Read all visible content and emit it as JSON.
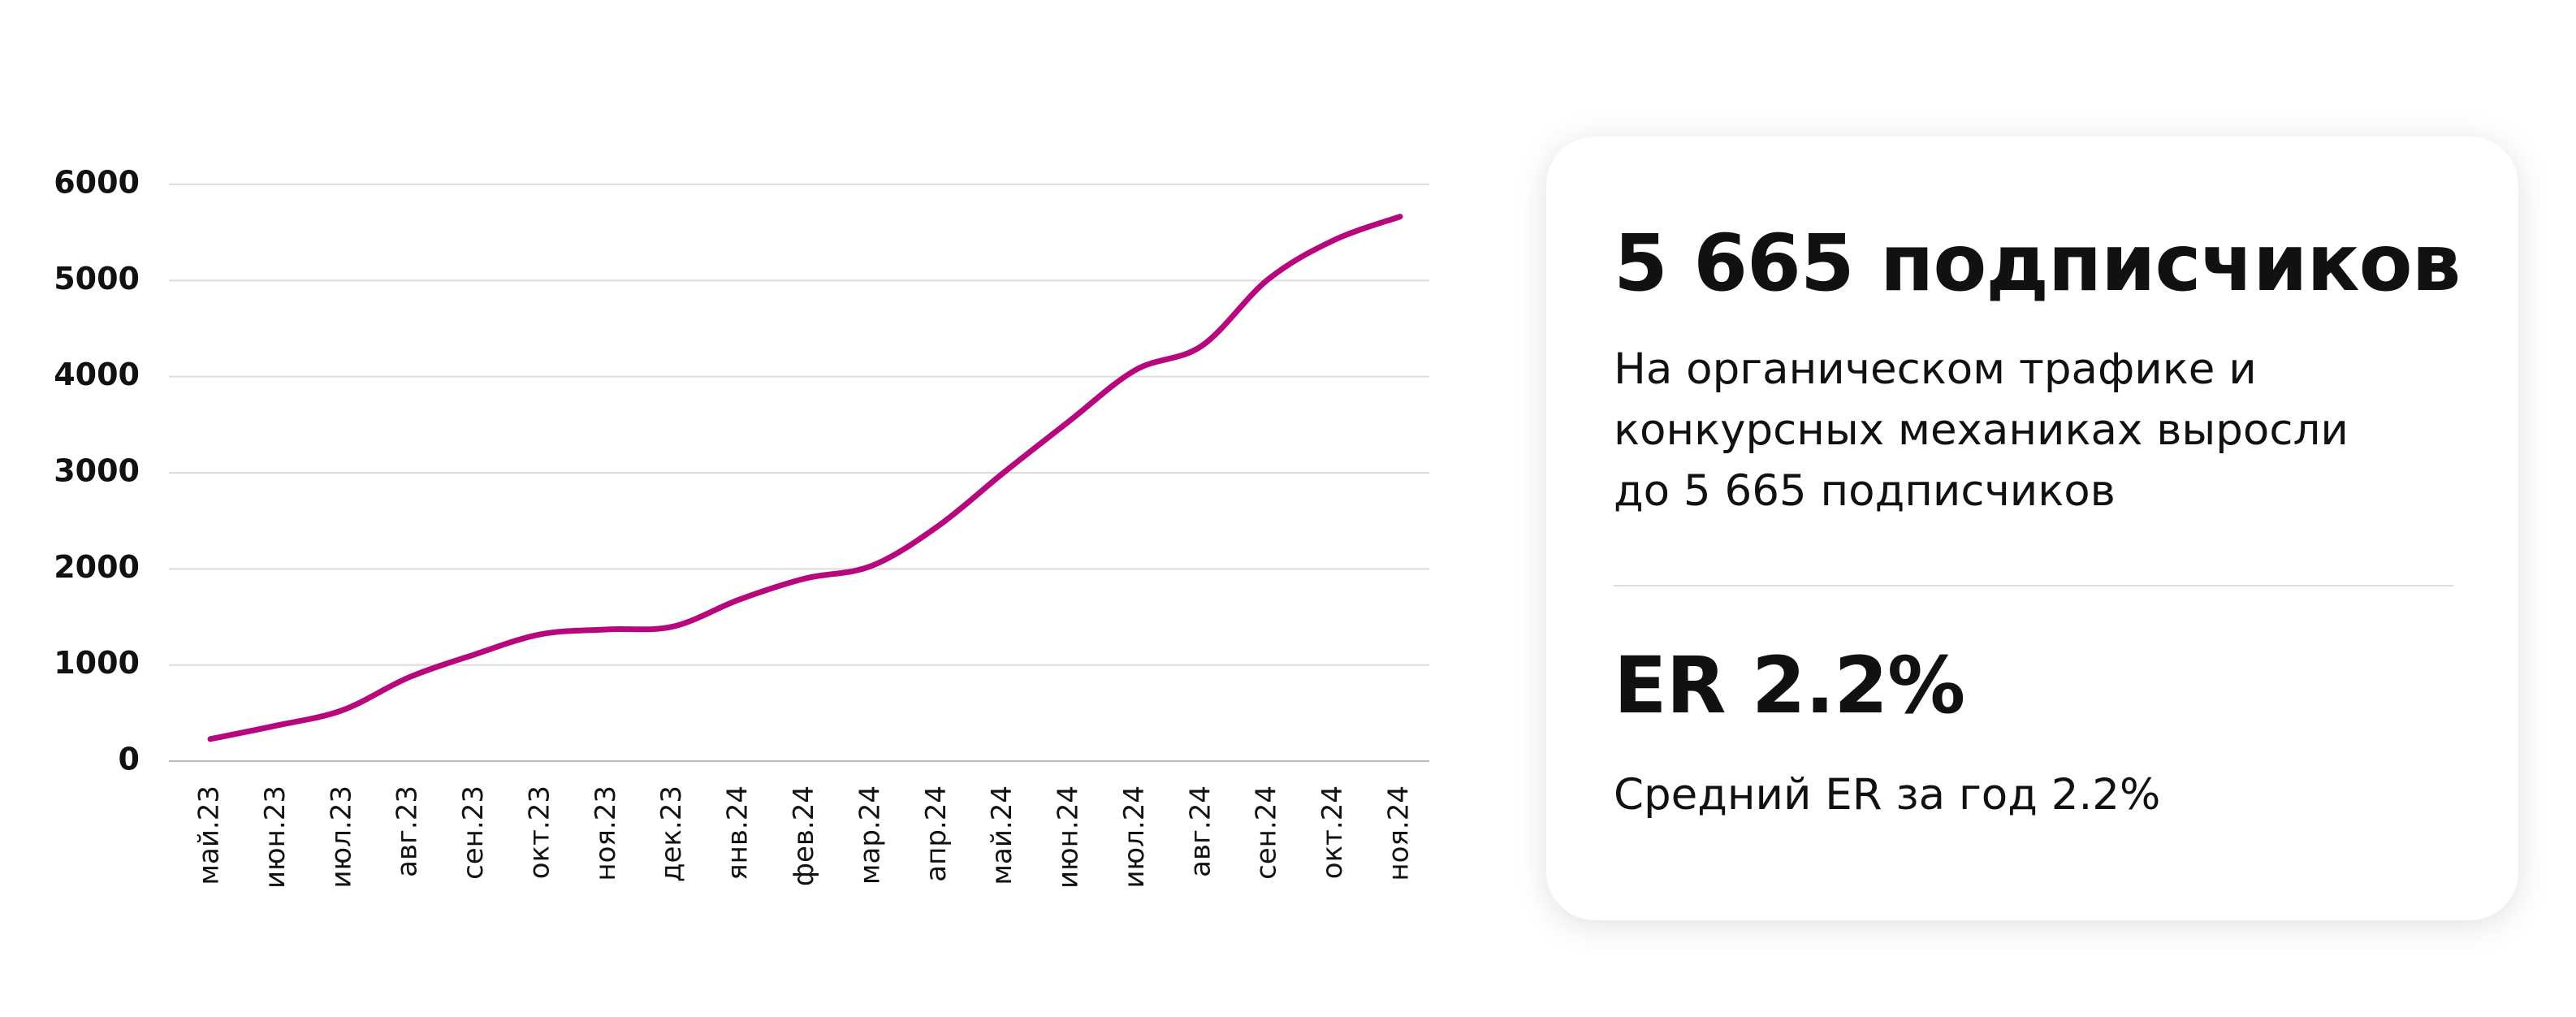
{
  "chart_data": {
    "type": "line",
    "categories": [
      "май.23",
      "июн.23",
      "июл.23",
      "авг.23",
      "сен.23",
      "окт.23",
      "ноя.23",
      "дек.23",
      "янв.24",
      "фев.24",
      "мар.24",
      "апр.24",
      "май.24",
      "июн.24",
      "июл.24",
      "авг.24",
      "сен.24",
      "окт.24",
      "ноя.24"
    ],
    "series": [
      {
        "color": "#b8077c",
        "values": [
          230,
          370,
          530,
          870,
          1110,
          1320,
          1370,
          1400,
          1680,
          1900,
          2030,
          2440,
          3000,
          3540,
          4070,
          4320,
          5010,
          5420,
          5665
        ]
      }
    ],
    "ylim": [
      0,
      6000
    ],
    "yticks": [
      0,
      1000,
      2000,
      3000,
      4000,
      5000,
      6000
    ],
    "grid": true
  },
  "card": {
    "title": "5 665 подписчиков",
    "text": [
      "На органическом трафике и",
      "конкурсных механиках выросли",
      "до 5 665 подписчиков"
    ],
    "er_title": "ER 2.2%",
    "er_text": "Средний ER за год 2.2%"
  }
}
